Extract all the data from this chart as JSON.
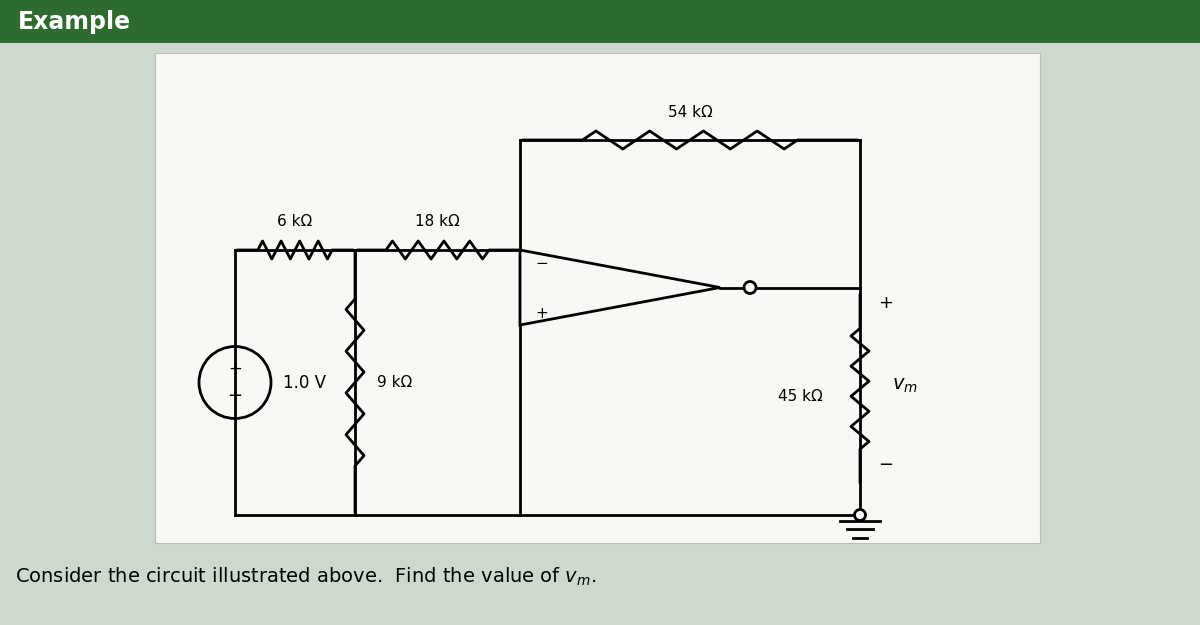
{
  "title": "Example",
  "title_bg": "#2e6b2e",
  "title_text_color": "white",
  "bg_color": "#ccd9cc",
  "panel_bg": "#f8f8f5",
  "panel_edge": "#bbbbbb",
  "bottom_text": "Consider the circuit illustrated above.  Find the value of ",
  "resistors": {
    "R1": "6 kΩ",
    "R2": "18 kΩ",
    "R3": "54 kΩ",
    "R4": "9 kΩ",
    "R5": "45 kΩ"
  },
  "voltage_source": "1.0 V",
  "lw": 2.0,
  "resistor_amp": 0.09,
  "resistor_n": 4
}
